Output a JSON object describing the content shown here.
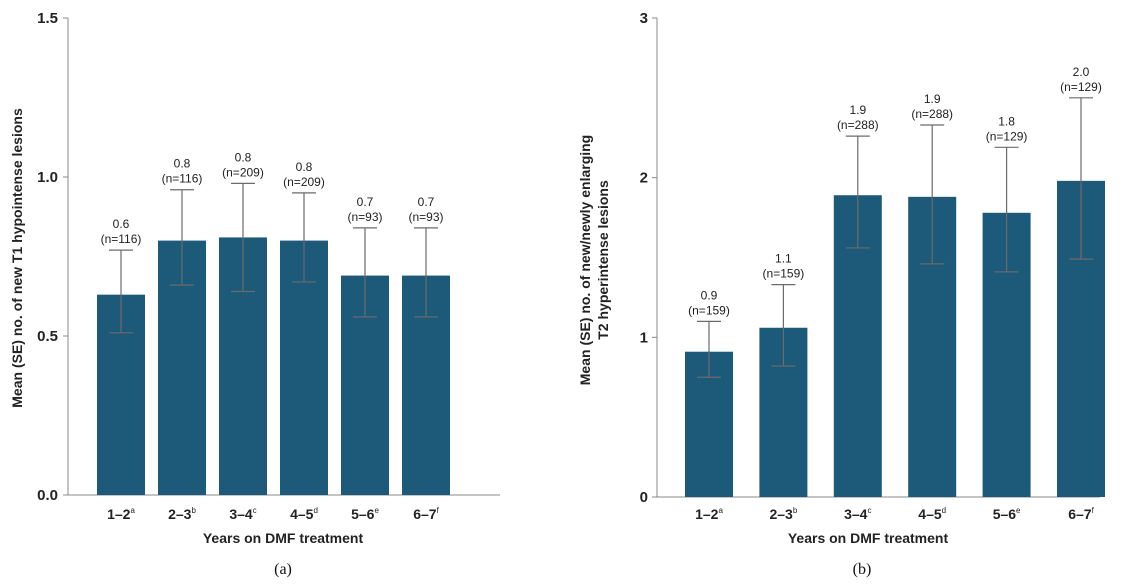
{
  "colors": {
    "bar": "#1d5a7a",
    "axis": "#888888",
    "errorbar": "#6b6b6b",
    "text": "#222222"
  },
  "chart_data": [
    {
      "type": "bar",
      "caption": "(a)",
      "categories": [
        "1–2",
        "2–3",
        "3–4",
        "4–5",
        "5–6",
        "6–7"
      ],
      "category_superscripts": [
        "a",
        "b",
        "c",
        "d",
        "e",
        "f"
      ],
      "values": [
        0.63,
        0.8,
        0.81,
        0.8,
        0.69,
        0.69
      ],
      "error_low": [
        0.51,
        0.66,
        0.64,
        0.67,
        0.56,
        0.56
      ],
      "error_high": [
        0.77,
        0.96,
        0.98,
        0.95,
        0.84,
        0.84
      ],
      "value_labels": [
        "0.6",
        "0.8",
        "0.8",
        "0.8",
        "0.7",
        "0.7"
      ],
      "n_labels": [
        "(n=116)",
        "(n=116)",
        "(n=209)",
        "(n=209)",
        "(n=93)",
        "(n=93)"
      ],
      "xlabel": "Years on DMF treatment",
      "ylabel": "Mean (SE) no. of new T1 hypointense lesions",
      "ylim": [
        0,
        1.5
      ],
      "yticks": [
        "0.0",
        "0.5",
        "1.0",
        "1.5"
      ],
      "ytick_values": [
        0,
        0.5,
        1.0,
        1.5
      ],
      "grid": false,
      "legend": "none"
    },
    {
      "type": "bar",
      "caption": "(b)",
      "categories": [
        "1–2",
        "2–3",
        "3–4",
        "4–5",
        "5–6",
        "6–7"
      ],
      "category_superscripts": [
        "a",
        "b",
        "c",
        "d",
        "e",
        "f"
      ],
      "values": [
        0.91,
        1.06,
        1.89,
        1.88,
        1.78,
        1.98
      ],
      "error_low": [
        0.75,
        0.82,
        1.56,
        1.46,
        1.41,
        1.49
      ],
      "error_high": [
        1.1,
        1.33,
        2.26,
        2.33,
        2.19,
        2.5
      ],
      "value_labels": [
        "0.9",
        "1.1",
        "1.9",
        "1.9",
        "1.8",
        "2.0"
      ],
      "n_labels": [
        "(n=159)",
        "(n=159)",
        "(n=288)",
        "(n=288)",
        "(n=129)",
        "(n=129)"
      ],
      "xlabel": "Years on DMF treatment",
      "ylabel_lines": [
        "Mean (SE) no. of new/newly enlarging",
        "T2 hyperintense lesions"
      ],
      "ylim": [
        0,
        3
      ],
      "yticks": [
        "0",
        "1",
        "2",
        "3"
      ],
      "ytick_values": [
        0,
        1,
        2,
        3
      ],
      "grid": false,
      "legend": "none"
    }
  ]
}
